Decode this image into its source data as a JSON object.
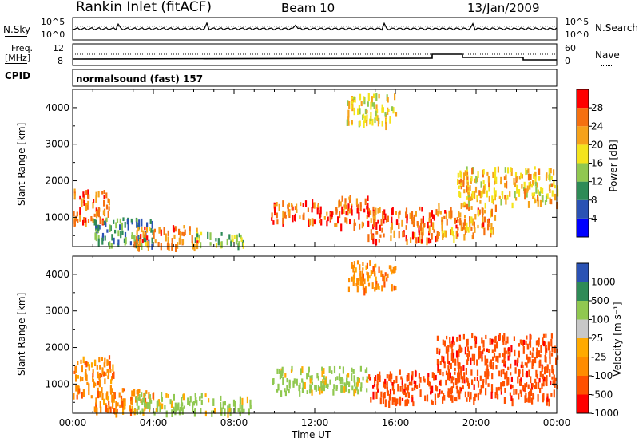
{
  "header": {
    "station": "Rankin Inlet (fitACF)",
    "beam": "Beam 10",
    "date": "13/Jan/2009"
  },
  "nsky_panel": {
    "left_label": "N.Sky",
    "left_ticks": [
      "10^5",
      "10^0"
    ],
    "right_ticks": [
      "10^5",
      "10^0"
    ],
    "right_label": "N.Search"
  },
  "freq_panel": {
    "left_label_1": "Freq.",
    "left_label_2": "[MHz]",
    "left_ticks": [
      "12",
      "8"
    ],
    "right_ticks": [
      "60",
      "0"
    ],
    "right_label": "Nave"
  },
  "cpid_panel": {
    "label": "CPID",
    "value": "normalsound (fast) 157"
  },
  "colors": {
    "power": [
      "#0000ff",
      "#2a52b4",
      "#2e8b57",
      "#90c850",
      "#f4e41c",
      "#f6a21a",
      "#f57010",
      "#ff0000"
    ],
    "velocity": [
      "#ff0000",
      "#ff5000",
      "#ff8c00",
      "#ffaa00",
      "#c8c8c8",
      "#90c850",
      "#2e8b57",
      "#2a52b4"
    ]
  },
  "chart_data": [
    {
      "type": "heatmap",
      "name": "power",
      "ylabel": "Slant Range [km]",
      "xlabel": "",
      "ylim": [
        200,
        4500
      ],
      "yticks": [
        "1000",
        "2000",
        "3000",
        "4000"
      ],
      "xlim": [
        0,
        24
      ],
      "xticks": [],
      "colorbar": {
        "label": "Power [dB]",
        "ticks": [
          "4",
          "8",
          "12",
          "16",
          "20",
          "24",
          "28"
        ],
        "range": [
          0,
          32
        ]
      },
      "echo_regions": [
        {
          "t": [
            0.0,
            1.8
          ],
          "r": [
            900,
            1800
          ],
          "level": 26
        },
        {
          "t": [
            1.0,
            4.0
          ],
          "r": [
            250,
            1000
          ],
          "level": 10
        },
        {
          "t": [
            3.0,
            6.2
          ],
          "r": [
            250,
            800
          ],
          "level": 24
        },
        {
          "t": [
            6.0,
            8.5
          ],
          "r": [
            250,
            600
          ],
          "level": 14
        },
        {
          "t": [
            9.8,
            12.6
          ],
          "r": [
            900,
            1500
          ],
          "level": 26
        },
        {
          "t": [
            12.6,
            14.6
          ],
          "r": [
            800,
            1600
          ],
          "level": 26
        },
        {
          "t": [
            14.6,
            18.0
          ],
          "r": [
            400,
            1300
          ],
          "level": 26
        },
        {
          "t": [
            18.0,
            21.0
          ],
          "r": [
            500,
            1400
          ],
          "level": 24
        },
        {
          "t": [
            19.0,
            24.0
          ],
          "r": [
            1400,
            2400
          ],
          "level": 20
        },
        {
          "t": [
            13.5,
            16.0
          ],
          "r": [
            3600,
            4400
          ],
          "level": 18
        }
      ]
    },
    {
      "type": "heatmap",
      "name": "velocity",
      "ylabel": "Slant Range [km]",
      "xlabel": "Time UT",
      "ylim": [
        200,
        4500
      ],
      "yticks": [
        "1000",
        "2000",
        "3000",
        "4000"
      ],
      "xlim": [
        0,
        24
      ],
      "xticks": [
        "00:00",
        "04:00",
        "08:00",
        "12:00",
        "16:00",
        "20:00",
        "00:00"
      ],
      "colorbar": {
        "label": "Velocity [m s⁻¹]",
        "ticks": [
          "1000",
          "500",
          "100",
          "25",
          "-25",
          "-100",
          "-500",
          "-1000"
        ]
      },
      "echo_regions": [
        {
          "t": [
            0.0,
            2.0
          ],
          "r": [
            700,
            1800
          ],
          "level": -100
        },
        {
          "t": [
            1.0,
            4.0
          ],
          "r": [
            250,
            900
          ],
          "level": -100
        },
        {
          "t": [
            3.0,
            7.0
          ],
          "r": [
            250,
            800
          ],
          "level": 100
        },
        {
          "t": [
            7.0,
            9.0
          ],
          "r": [
            250,
            700
          ],
          "level": 100
        },
        {
          "t": [
            9.8,
            14.6
          ],
          "r": [
            800,
            1500
          ],
          "level": 100
        },
        {
          "t": [
            14.6,
            18.0
          ],
          "r": [
            500,
            1400
          ],
          "level": -500
        },
        {
          "t": [
            18.0,
            24.0
          ],
          "r": [
            600,
            2400
          ],
          "level": -500
        },
        {
          "t": [
            13.5,
            16.0
          ],
          "r": [
            3600,
            4400
          ],
          "level": -100
        }
      ]
    }
  ]
}
